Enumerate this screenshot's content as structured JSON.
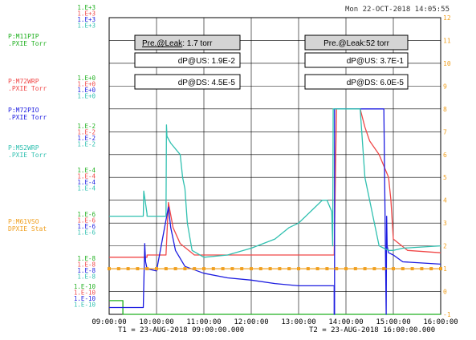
{
  "header": {
    "timestamp": "Mon 22-OCT-2018 14:05:55"
  },
  "footer": {
    "t1": "T1 = 23-AUG-2018 09:00:00.000",
    "t2": "T2 = 23-AUG-2018 16:00:00.000"
  },
  "colors": {
    "green": "#20b020",
    "red": "#f04848",
    "blue": "#1c1ce0",
    "cyan": "#30c0b0",
    "orange": "#f0a020",
    "grid": "#000000"
  },
  "channels": [
    {
      "line1": "P:M11PIP",
      "line2": ".PXIE  Torr",
      "color": "#20b020"
    },
    {
      "line1": "P:M72WRP",
      "line2": ".PXIE  Torr",
      "color": "#f04848"
    },
    {
      "line1": "P:M72PIO",
      "line2": ".PXIE  Torr",
      "color": "#1c1ce0"
    },
    {
      "line1": "P:M52WRP",
      "line2": ".PXIE  Torr",
      "color": "#30c0b0"
    },
    {
      "line1": "P:M61VSO",
      "line2": "DPXIE  Stat",
      "color": "#f0a020"
    }
  ],
  "y_scales": [
    {
      "color": "#20b020",
      "labels": [
        "1.E+3",
        "1.E+0",
        "1.E-2",
        "1.E-4",
        "1.E-6",
        "1.E-8",
        "1.E-10"
      ]
    },
    {
      "color": "#f04848",
      "labels": [
        "1.E+3",
        "1.E+0",
        "1.E-2",
        "1.E-4",
        "1.E-6",
        "1.E-8",
        "1.E-10"
      ]
    },
    {
      "color": "#1c1ce0",
      "labels": [
        "1.E+3",
        "1.E+0",
        "1.E-2",
        "1.E-4",
        "1.E-6",
        "1.E-8",
        "1.E-10"
      ]
    },
    {
      "color": "#30c0b0",
      "labels": [
        "1.E+3",
        "1.E+0",
        "1.E-2",
        "1.E-4",
        "1.E-6",
        "1.E-8",
        "1.E-10"
      ]
    }
  ],
  "annotations": [
    {
      "title_underlined": "Pre.@Leak",
      "title_rest": ": 1.7 torr",
      "us": "dP@US: 1.9E-2",
      "ds": "dP@DS: 4.5E-5"
    },
    {
      "title_underlined": "",
      "title_rest": "Pre.@Leak:52 torr",
      "us": "dP@US: 3.7E-1",
      "ds": "dP@DS: 6.0E-5"
    }
  ],
  "chart_data": {
    "type": "line",
    "x_ticks": [
      "09:00:00",
      "10:00:00",
      "11:00:00",
      "12:00:00",
      "13:00:00",
      "14:00:00",
      "15:00:00",
      "16:00:00"
    ],
    "xlim": [
      "09:00",
      "16:00"
    ],
    "right_axis": {
      "ticks": [
        "-1",
        "0",
        "1",
        "2",
        "3",
        "4",
        "5",
        "6",
        "7",
        "8",
        "9",
        "10",
        "11",
        "12"
      ],
      "ylim": [
        -1,
        12
      ]
    },
    "grid": true,
    "series": [
      {
        "name": "P:M11PIP",
        "color": "#20b020",
        "x": [
          9.0,
          9.29,
          9.29,
          16.0
        ],
        "y": [
          -0.4,
          -0.4,
          -1.0,
          -1.0
        ]
      },
      {
        "name": "P:M72WRP",
        "color": "#f04848",
        "x": [
          9.0,
          9.8,
          9.8,
          10.2,
          10.25,
          10.35,
          10.5,
          10.8,
          11.5,
          12.5,
          13.3,
          13.6,
          13.75,
          13.8,
          14.3,
          14.4,
          14.5,
          14.6,
          14.7,
          14.8,
          14.9,
          14.95,
          15.0,
          15.3,
          16.0
        ],
        "y": [
          1.5,
          1.5,
          1.6,
          1.6,
          3.9,
          2.8,
          2.1,
          1.6,
          1.6,
          1.6,
          1.6,
          1.6,
          1.6,
          8.0,
          8.0,
          7.2,
          6.6,
          6.3,
          6.0,
          5.5,
          5.0,
          4.0,
          2.3,
          1.8,
          1.7
        ]
      },
      {
        "name": "P:M72PIO",
        "color": "#1c1ce0",
        "x": [
          9.0,
          9.72,
          9.75,
          9.77,
          9.8,
          10.0,
          10.25,
          10.3,
          10.4,
          10.6,
          11.0,
          11.5,
          12.0,
          12.5,
          13.0,
          13.3,
          13.6,
          13.75,
          13.75,
          13.76,
          13.76,
          14.3,
          14.8,
          14.85,
          14.86,
          14.87,
          14.9,
          15.0,
          15.2,
          16.0
        ],
        "y": [
          -0.7,
          -0.7,
          2.1,
          1.3,
          1.0,
          0.9,
          3.7,
          2.8,
          1.8,
          1.1,
          0.8,
          0.6,
          0.5,
          0.35,
          0.25,
          0.25,
          0.25,
          0.25,
          -1.0,
          -1.0,
          8.0,
          8.0,
          8.0,
          -1.0,
          3.3,
          2.0,
          1.7,
          1.6,
          1.3,
          1.2
        ]
      },
      {
        "name": "P:M52WRP",
        "color": "#30c0b0",
        "x": [
          9.0,
          9.72,
          9.73,
          9.8,
          9.8,
          10.2,
          10.21,
          10.22,
          10.3,
          10.5,
          10.55,
          10.6,
          10.65,
          10.75,
          11.0,
          11.5,
          12.0,
          12.5,
          12.8,
          13.0,
          13.3,
          13.5,
          13.6,
          13.7,
          13.72,
          13.73,
          14.3,
          14.4,
          14.5,
          14.6,
          14.7,
          14.8,
          14.9,
          15.0,
          15.2,
          16.0
        ],
        "y": [
          3.3,
          3.3,
          4.4,
          3.4,
          3.3,
          3.3,
          7.3,
          6.8,
          6.5,
          6.0,
          5.0,
          4.5,
          3.0,
          1.8,
          1.5,
          1.6,
          1.9,
          2.3,
          2.8,
          3.0,
          3.6,
          4.0,
          4.0,
          3.5,
          2.0,
          8.0,
          8.0,
          5.0,
          4.0,
          3.0,
          2.0,
          1.9,
          1.8,
          1.8,
          1.9,
          2.0
        ]
      },
      {
        "name": "P:M61VSO",
        "color": "#f0a020",
        "marker": "square",
        "x": [
          9.0,
          9.2,
          9.4,
          9.6,
          9.8,
          10.0,
          10.2,
          10.4,
          10.6,
          10.8,
          11.0,
          11.2,
          11.4,
          11.6,
          11.8,
          12.0,
          12.2,
          12.4,
          12.6,
          12.8,
          13.0,
          13.2,
          13.4,
          13.6,
          13.8,
          14.0,
          14.2,
          14.4,
          14.6,
          14.8,
          15.0,
          15.2,
          15.4,
          15.6,
          15.8,
          16.0
        ],
        "y": [
          1.0,
          1.0,
          1.0,
          1.0,
          1.0,
          1.0,
          1.0,
          1.0,
          1.0,
          1.0,
          1.0,
          1.0,
          1.0,
          1.0,
          1.0,
          1.0,
          1.0,
          1.0,
          1.0,
          1.0,
          1.0,
          1.0,
          1.0,
          1.0,
          1.0,
          1.0,
          1.0,
          1.0,
          1.0,
          1.0,
          1.0,
          1.0,
          1.0,
          1.0,
          1.0,
          1.0
        ]
      }
    ]
  }
}
